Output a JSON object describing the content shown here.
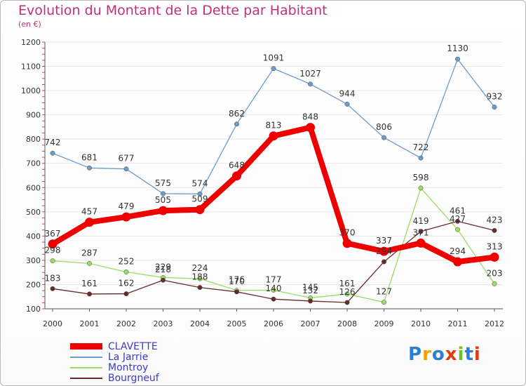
{
  "chart_data": {
    "type": "line",
    "title": "Evolution du Montant de la Dette par Habitant",
    "subtitle": "(en €)",
    "x": [
      "2000",
      "2001",
      "2002",
      "2003",
      "2004",
      "2005",
      "2006",
      "2007",
      "2008",
      "2009",
      "2010",
      "2011",
      "2012"
    ],
    "yticks": [
      "100",
      "200",
      "300",
      "400",
      "500",
      "600",
      "700",
      "800",
      "900",
      "1000",
      "1100",
      "1200"
    ],
    "ylim": [
      100,
      1200
    ],
    "grid": true,
    "legend_position": "bottom-left",
    "series": [
      {
        "name": "CLAVETTE",
        "color": "#ee0000",
        "values": [
          367,
          457,
          479,
          505,
          509,
          648,
          813,
          848,
          370,
          337,
          371,
          294,
          313
        ]
      },
      {
        "name": "La Jarrie",
        "color": "#6a9ccd",
        "values": [
          742,
          681,
          677,
          575,
          574,
          862,
          1091,
          1027,
          944,
          806,
          722,
          1130,
          932
        ]
      },
      {
        "name": "Montroy",
        "color": "#99dd66",
        "values": [
          298,
          287,
          252,
          229,
          224,
          176,
          177,
          145,
          161,
          127,
          598,
          427,
          203
        ]
      },
      {
        "name": "Bourgneuf",
        "color": "#6b2a2a",
        "values": [
          183,
          161,
          162,
          218,
          188,
          170,
          140,
          132,
          126,
          294,
          419,
          461,
          423
        ]
      }
    ]
  },
  "logo": {
    "text": "Proxiti",
    "colors": [
      "#2a7fd0",
      "#f5a000",
      "#2a7fd0",
      "#e53a10",
      "#6cc020",
      "#2a7fd0",
      "#e53a10"
    ]
  }
}
